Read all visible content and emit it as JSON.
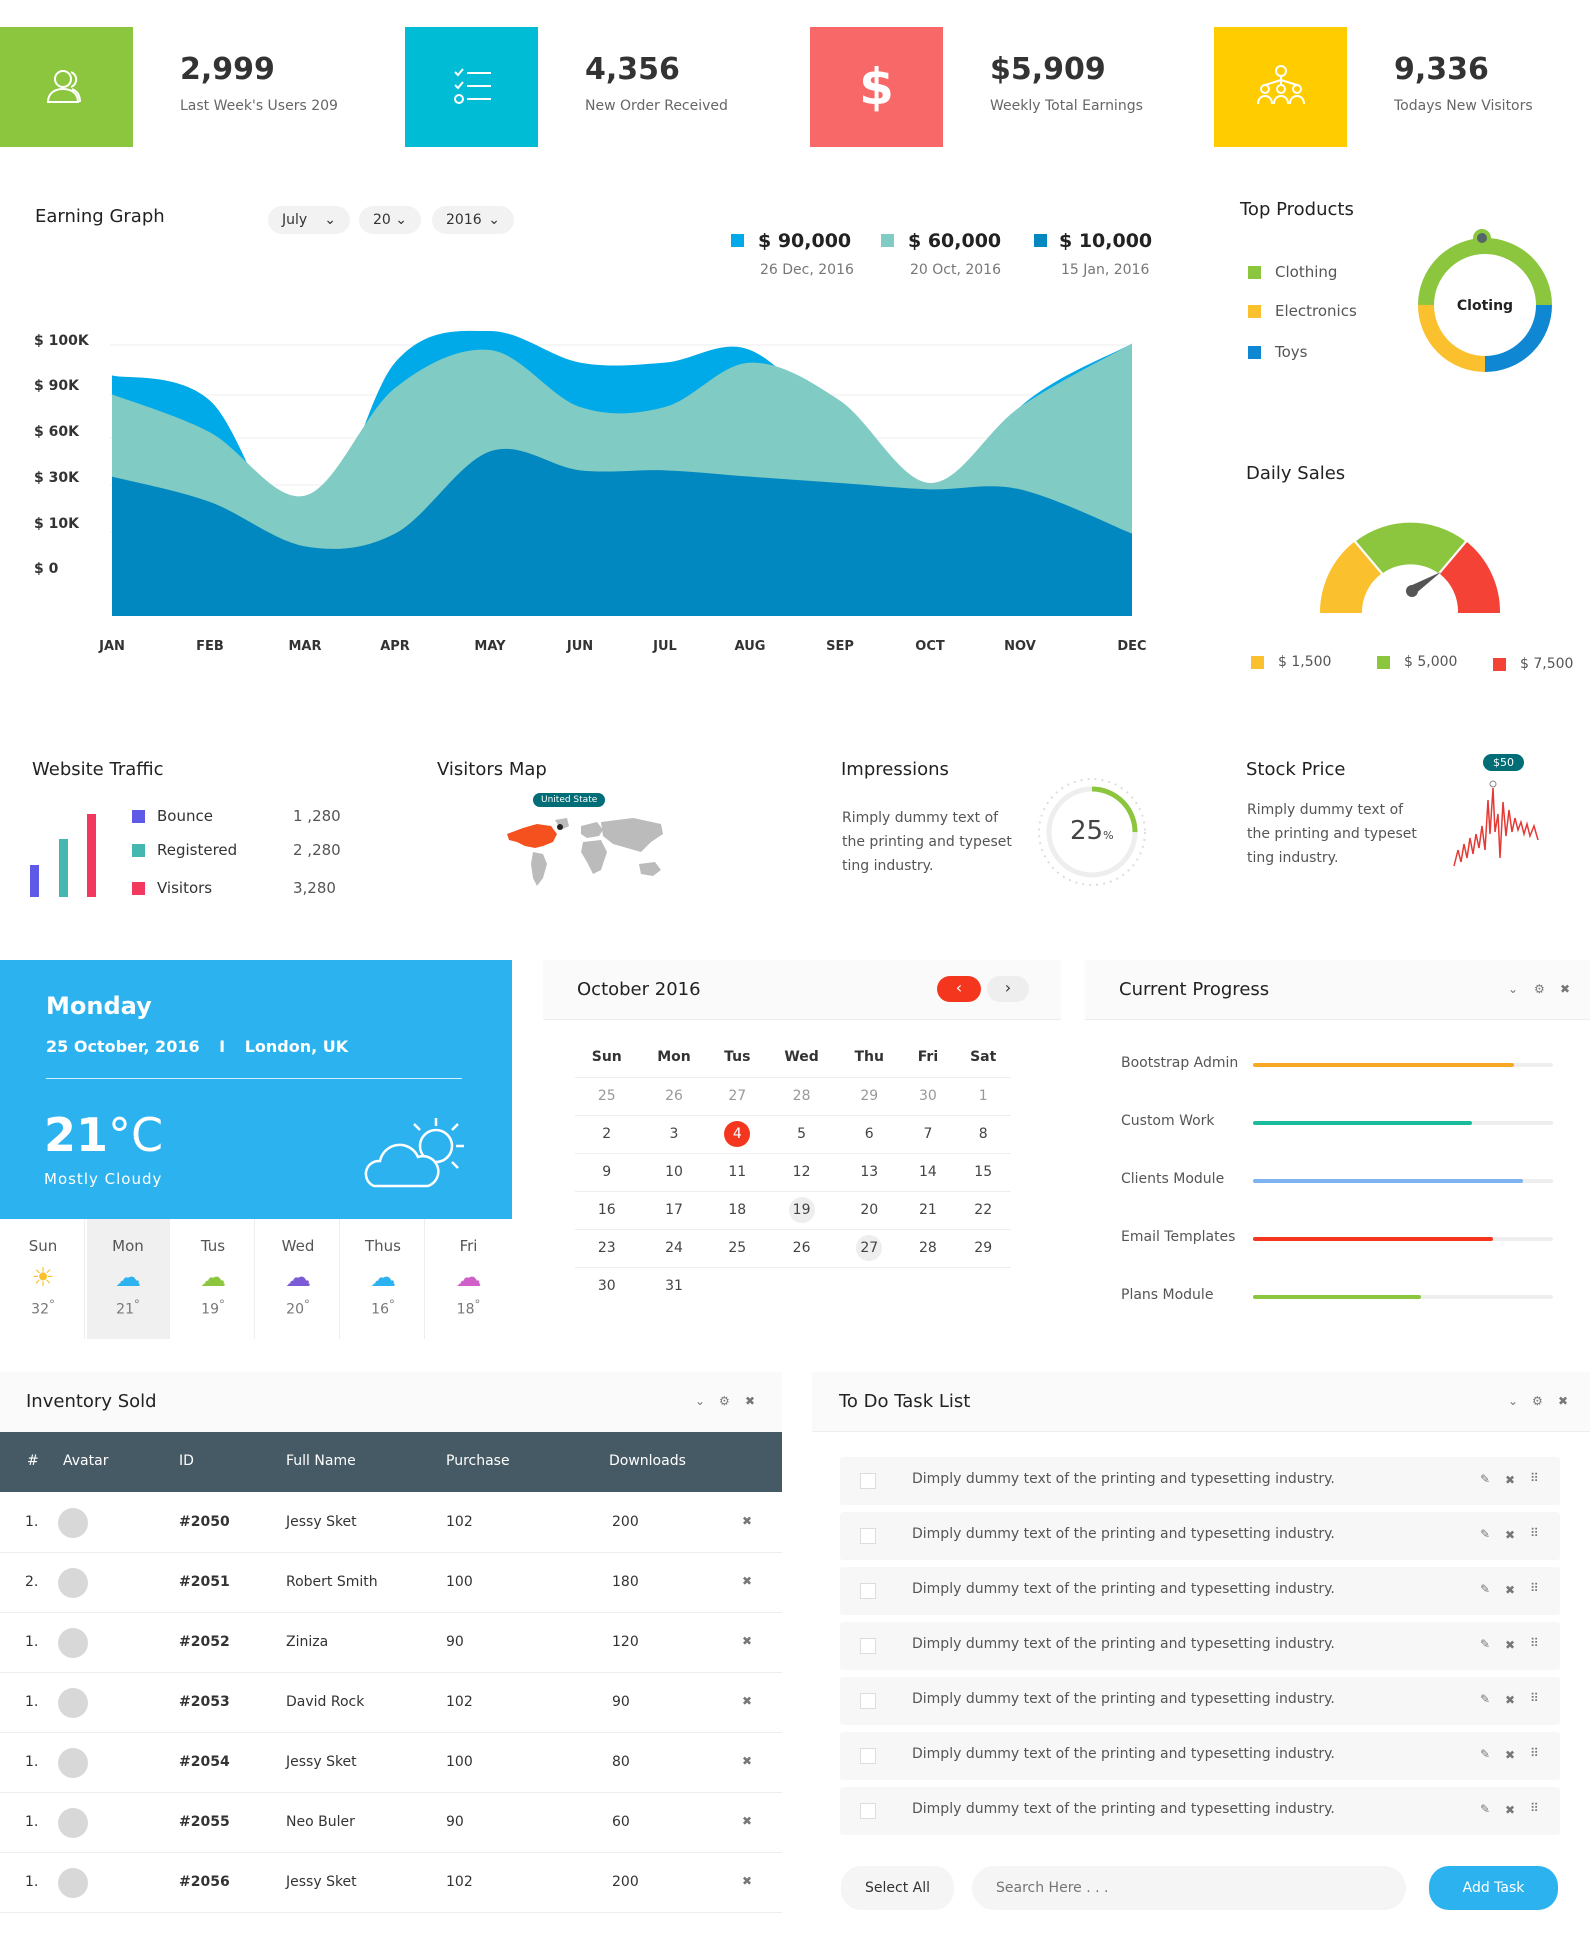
{
  "stats": [
    {
      "value": "2,999",
      "label": "Last Week's Users 209",
      "color": "#8cc63f",
      "icon": "users-icon"
    },
    {
      "value": "4,356",
      "label": "New Order Received",
      "color": "#00bcd4",
      "icon": "checklist-icon"
    },
    {
      "value": "$5,909",
      "label": "Weekly Total Earnings",
      "color": "#f96868",
      "icon": "dollar-icon"
    },
    {
      "value": "9,336",
      "label": "Todays New Visitors",
      "color": "#ffcc00",
      "icon": "network-icon"
    }
  ],
  "earning": {
    "title": "Earning Graph",
    "month": "July",
    "day": "20",
    "year": "2016",
    "legend": [
      {
        "value": "$ 90,000",
        "date": "26 Dec, 2016",
        "color": "#00a9e8"
      },
      {
        "value": "$ 60,000",
        "date": "20 Oct, 2016",
        "color": "#80cbc4"
      },
      {
        "value": "$ 10,000",
        "date": "15 Jan, 2016",
        "color": "#0288c0"
      }
    ]
  },
  "chart_data": [
    {
      "type": "area",
      "title": "Earning Graph",
      "categories": [
        "JAN",
        "FEB",
        "MAR",
        "APR",
        "MAY",
        "JUN",
        "JUL",
        "AUG",
        "SEP",
        "OCT",
        "NOV",
        "DEC"
      ],
      "y_ticks": [
        "$ 100K",
        "$ 90K",
        "$ 60K",
        "$ 30K",
        "$ 10K",
        "$ 0"
      ],
      "series": [
        {
          "name": "$ 90,000",
          "color": "#00a9e8",
          "values": [
            38,
            34,
            11,
            40,
            45,
            40,
            40,
            42,
            29,
            14,
            33,
            43
          ]
        },
        {
          "name": "$ 60,000",
          "color": "#80cbc4",
          "values": [
            35,
            29,
            19,
            36,
            42,
            33,
            33,
            40,
            34,
            21,
            33,
            43
          ]
        },
        {
          "name": "$ 10,000",
          "color": "#0288c0",
          "values": [
            22,
            18,
            11,
            13,
            26,
            23,
            23,
            22,
            21,
            20,
            20,
            13
          ]
        }
      ]
    },
    {
      "type": "pie",
      "title": "Top Products",
      "categories": [
        "Clothing",
        "Electronics",
        "Toys"
      ],
      "values": [
        50,
        25,
        25
      ],
      "center_label": "Cloting"
    },
    {
      "type": "bar",
      "title": "Website Traffic",
      "categories": [
        "Bounce",
        "Registered",
        "Visitors"
      ],
      "values": [
        1280,
        2280,
        3280
      ]
    }
  ],
  "top_products": {
    "title": "Top Products",
    "items": [
      {
        "label": "Clothing",
        "color": "#8cc63f"
      },
      {
        "label": "Electronics",
        "color": "#fbc02d"
      },
      {
        "label": "Toys",
        "color": "#0f87d3"
      }
    ],
    "center": "Cloting"
  },
  "daily_sales": {
    "title": "Daily Sales",
    "items": [
      {
        "label": "$ 1,500",
        "color": "#fbc02d"
      },
      {
        "label": "$ 5,000",
        "color": "#8cc63f"
      },
      {
        "label": "$ 7,500",
        "color": "#f44336"
      }
    ]
  },
  "traffic": {
    "title": "Website Traffic",
    "items": [
      {
        "label": "Bounce",
        "value": "1 ,280",
        "color": "#5f59e8"
      },
      {
        "label": "Registered",
        "value": "2 ,280",
        "color": "#44b8b0"
      },
      {
        "label": "Visitors",
        "value": "3,280",
        "color": "#f2385f"
      }
    ]
  },
  "visitors_map": {
    "title": "Visitors Map",
    "badge": "United State"
  },
  "impressions": {
    "title": "Impressions",
    "text": "Rimply dummy text of the printing and typeset ting industry.",
    "percent": "25",
    "unit": "%"
  },
  "stock": {
    "title": "Stock Price",
    "text": "Rimply dummy text of the printing and typeset ting industry.",
    "badge": "$50"
  },
  "weather": {
    "day": "Monday",
    "date": "25 October, 2016",
    "sep": "I",
    "location": "London, UK",
    "temp": "21",
    "deg": "°C",
    "cond": "Mostly Cloudy",
    "days": [
      {
        "name": "Sun",
        "temp": "32",
        "icon": "sun-icon"
      },
      {
        "name": "Mon",
        "temp": "21",
        "icon": "rain-cloud-icon"
      },
      {
        "name": "Tus",
        "temp": "19",
        "icon": "cloud-icon"
      },
      {
        "name": "Wed",
        "temp": "20",
        "icon": "partly-cloudy-icon"
      },
      {
        "name": "Thus",
        "temp": "16",
        "icon": "rain-cloud-icon"
      },
      {
        "name": "Fri",
        "temp": "18",
        "icon": "cloud-moon-icon"
      }
    ]
  },
  "calendar": {
    "title": "October 2016",
    "days": [
      "Sun",
      "Mon",
      "Tus",
      "Wed",
      "Thu",
      "Fri",
      "Sat"
    ],
    "weeks": [
      [
        "25",
        "26",
        "27",
        "28",
        "29",
        "30",
        "1"
      ],
      [
        "2",
        "3",
        "4",
        "5",
        "6",
        "7",
        "8"
      ],
      [
        "9",
        "10",
        "11",
        "12",
        "13",
        "14",
        "15"
      ],
      [
        "16",
        "17",
        "18",
        "19",
        "20",
        "21",
        "22"
      ],
      [
        "23",
        "24",
        "25",
        "26",
        "27",
        "28",
        "29"
      ],
      [
        "30",
        "31",
        "",
        "",
        "",
        "",
        ""
      ]
    ]
  },
  "progress": {
    "title": "Current Progress",
    "items": [
      {
        "label": "Bootstrap Admin",
        "value": 0.87,
        "color": "#f9a825"
      },
      {
        "label": "Custom Work",
        "value": 0.73,
        "color": "#1abc9c"
      },
      {
        "label": "Clients Module",
        "value": 0.9,
        "color": "#7eb3f0"
      },
      {
        "label": "Email Templates",
        "value": 0.8,
        "color": "#f4361e"
      },
      {
        "label": "Plans Module",
        "value": 0.56,
        "color": "#8cc63f"
      }
    ]
  },
  "inventory": {
    "title": "Inventory Sold",
    "headers": [
      "#",
      "Avatar",
      "ID",
      "Full Name",
      "Purchase",
      "Downloads"
    ],
    "rows": [
      {
        "n": "1.",
        "id": "#2050",
        "name": "Jessy Sket",
        "purchase": "102",
        "downloads": "200"
      },
      {
        "n": "2.",
        "id": "#2051",
        "name": "Robert Smith",
        "purchase": "100",
        "downloads": "180"
      },
      {
        "n": "1.",
        "id": "#2052",
        "name": "Ziniza",
        "purchase": "90",
        "downloads": "120"
      },
      {
        "n": "1.",
        "id": "#2053",
        "name": "David Rock",
        "purchase": "102",
        "downloads": "90"
      },
      {
        "n": "1.",
        "id": "#2054",
        "name": "Jessy Sket",
        "purchase": "100",
        "downloads": "80"
      },
      {
        "n": "1.",
        "id": "#2055",
        "name": "Neo Buler",
        "purchase": "90",
        "downloads": "60"
      },
      {
        "n": "1.",
        "id": "#2056",
        "name": "Jessy Sket",
        "purchase": "102",
        "downloads": "200"
      }
    ]
  },
  "todo": {
    "title": "To Do Task List",
    "task": "Dimply dummy text of the printing and typesetting industry.",
    "count_rows": 7,
    "select_all": "Select All",
    "search_placeholder": "Search Here . . .",
    "add": "Add Task"
  }
}
